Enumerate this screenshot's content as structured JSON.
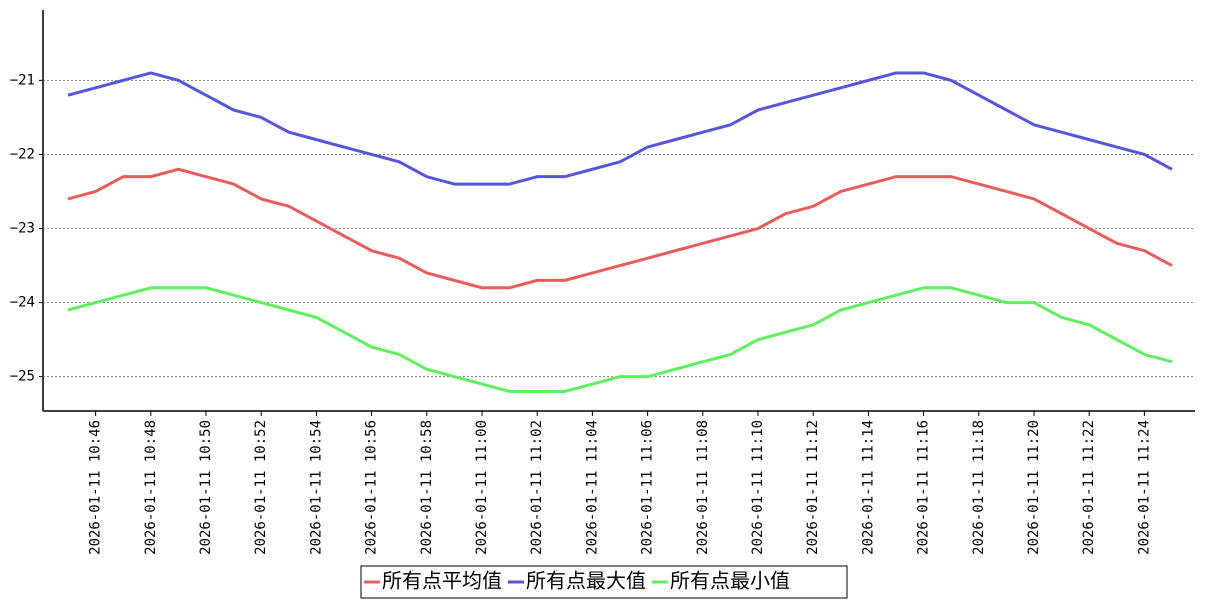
{
  "chart_data": {
    "type": "line",
    "categories": [
      null,
      "2026-01-11  10:46",
      null,
      "2026-01-11  10:48",
      null,
      "2026-01-11  10:50",
      null,
      "2026-01-11  10:52",
      null,
      "2026-01-11  10:54",
      null,
      "2026-01-11  10:56",
      null,
      "2026-01-11  10:58",
      null,
      "2026-01-11  11:00",
      null,
      "2026-01-11  11:02",
      null,
      "2026-01-11  11:04",
      null,
      "2026-01-11  11:06",
      null,
      "2026-01-11  11:08",
      null,
      "2026-01-11  11:10",
      null,
      "2026-01-11  11:12",
      null,
      "2026-01-11  11:14",
      null,
      "2026-01-11  11:16",
      null,
      "2026-01-11  11:18",
      null,
      "2026-01-11  11:20",
      null,
      "2026-01-11  11:22",
      null,
      "2026-01-11  11:24",
      null
    ],
    "series": [
      {
        "name": "所有点平均值",
        "color": "#e85c5c",
        "values": [
          -22.6,
          -22.5,
          -22.3,
          -22.3,
          -22.2,
          -22.3,
          -22.4,
          -22.6,
          -22.7,
          -22.9,
          -23.1,
          -23.3,
          -23.4,
          -23.6,
          -23.7,
          -23.8,
          -23.8,
          -23.7,
          -23.7,
          -23.6,
          -23.5,
          -23.4,
          -23.3,
          -23.2,
          -23.1,
          -23.0,
          -22.8,
          -22.7,
          -22.5,
          -22.4,
          -22.3,
          -22.3,
          -22.3,
          -22.4,
          -22.5,
          -22.6,
          -22.8,
          -23.0,
          -23.2,
          -23.3,
          -23.5
        ]
      },
      {
        "name": "所有点最大值",
        "color": "#5555dd",
        "values": [
          -21.2,
          -21.1,
          -21.0,
          -20.9,
          -21.0,
          -21.2,
          -21.4,
          -21.5,
          -21.7,
          -21.8,
          -21.9,
          -22.0,
          -22.1,
          -22.3,
          -22.4,
          -22.4,
          -22.4,
          -22.3,
          -22.3,
          -22.2,
          -22.1,
          -21.9,
          -21.8,
          -21.7,
          -21.6,
          -21.4,
          -21.3,
          -21.2,
          -21.1,
          -21.0,
          -20.9,
          -20.9,
          -21.0,
          -21.2,
          -21.4,
          -21.6,
          -21.7,
          -21.8,
          -21.9,
          -22.0,
          -22.2
        ]
      },
      {
        "name": "所有点最小值",
        "color": "#5ef05e",
        "values": [
          -24.1,
          -24.0,
          -23.9,
          -23.8,
          -23.8,
          -23.8,
          -23.9,
          -24.0,
          -24.1,
          -24.2,
          -24.4,
          -24.6,
          -24.7,
          -24.9,
          -25.0,
          -25.1,
          -25.2,
          -25.2,
          -25.2,
          -25.1,
          -25.0,
          -25.0,
          -24.9,
          -24.8,
          -24.7,
          -24.5,
          -24.4,
          -24.3,
          -24.1,
          -24.0,
          -23.9,
          -23.8,
          -23.8,
          -23.9,
          -24.0,
          -24.0,
          -24.2,
          -24.3,
          -24.5,
          -24.7,
          -24.8
        ]
      }
    ],
    "ylim": [
      -25.45,
      -20.05
    ],
    "yticks": [
      {
        "value": -25,
        "label": "−25"
      },
      {
        "value": -24,
        "label": "−24"
      },
      {
        "value": -23,
        "label": "−23"
      },
      {
        "value": -22,
        "label": "−22"
      },
      {
        "value": -21,
        "label": "−21"
      }
    ],
    "grid": true
  }
}
